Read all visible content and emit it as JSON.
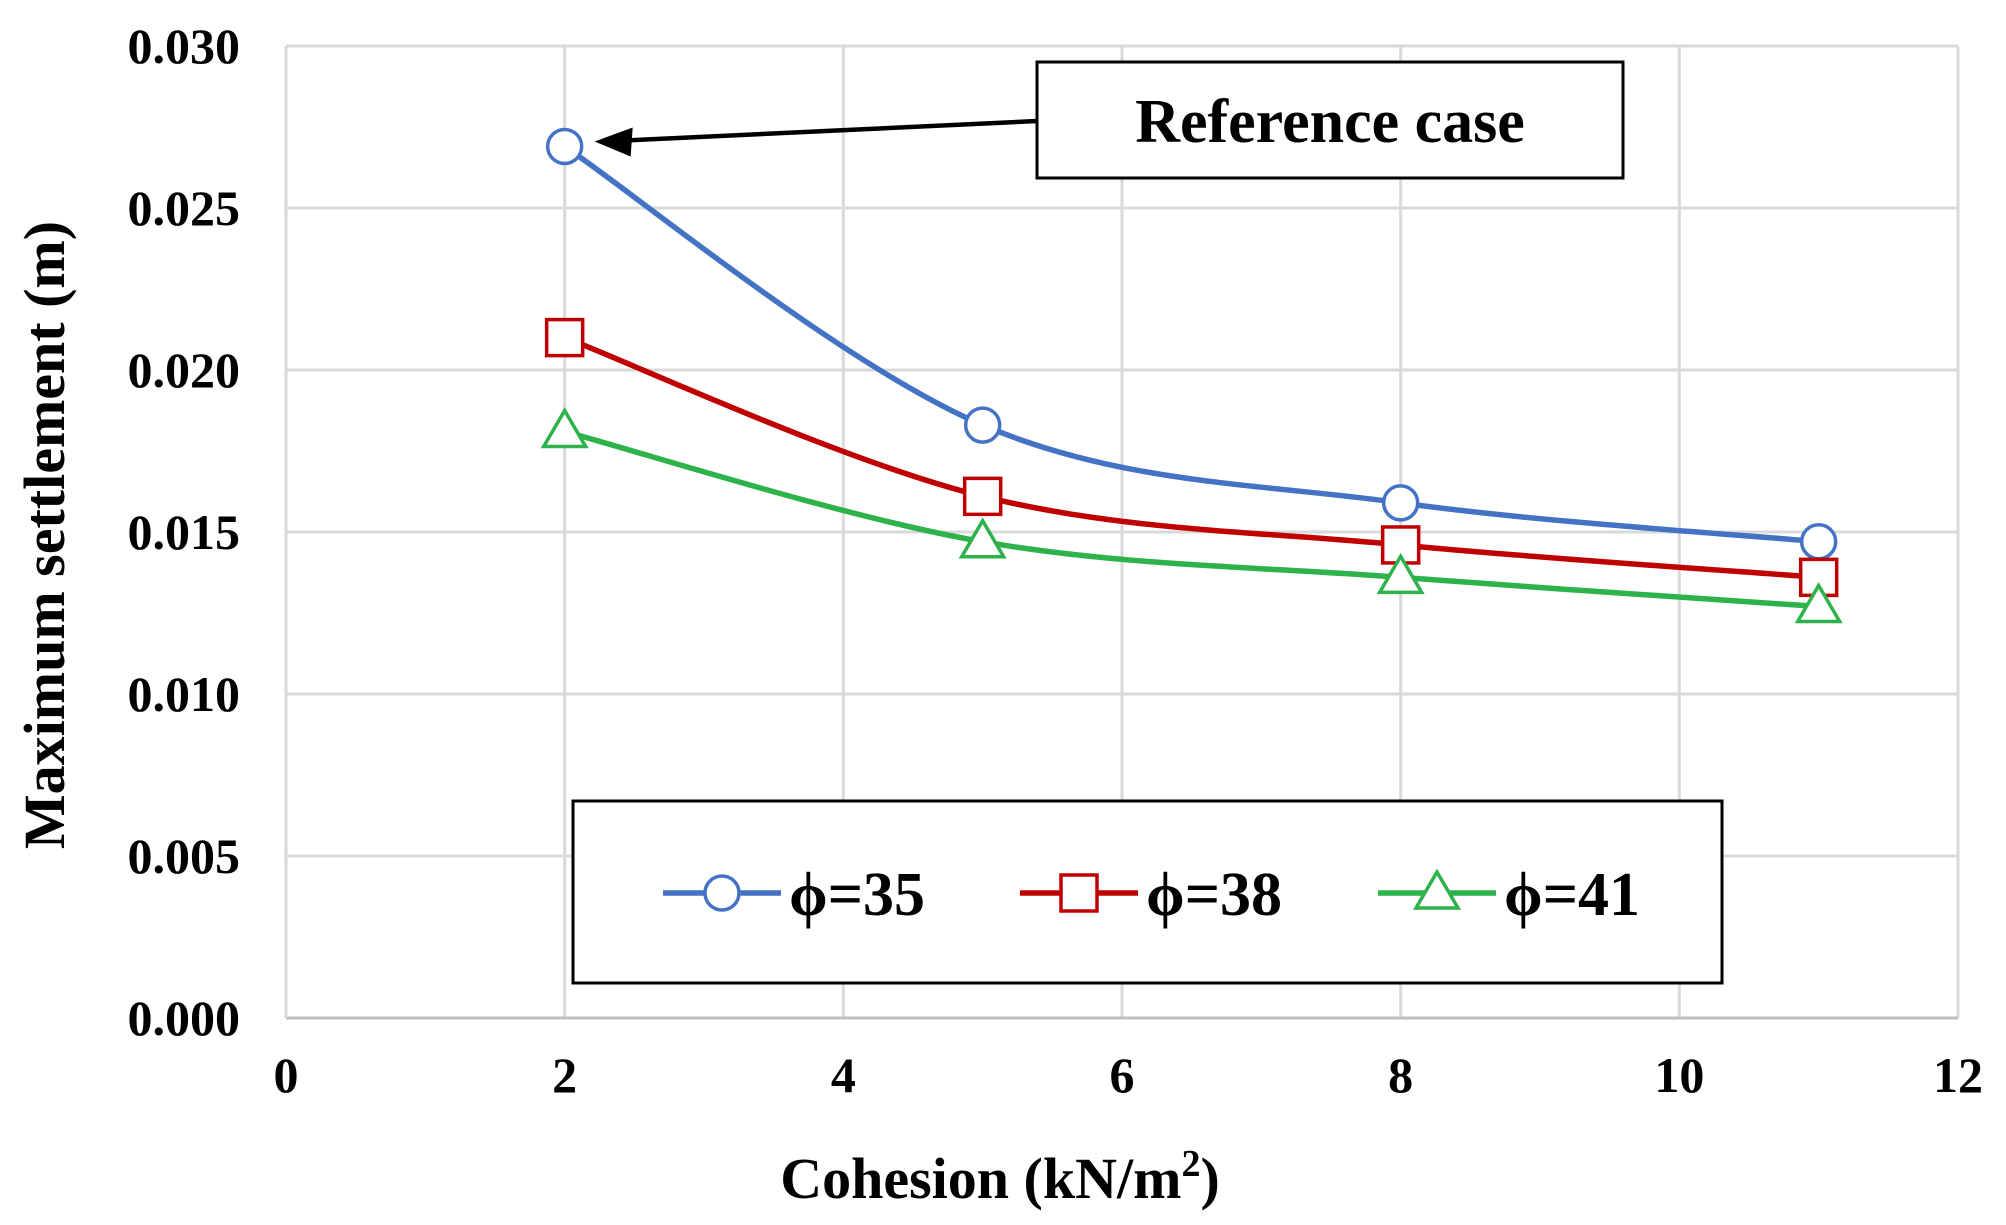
{
  "chart_data": {
    "type": "line",
    "title": "",
    "xlabel": "Cohesion (kN/m",
    "xlabel_sup": "2",
    "xlabel_end": ")",
    "ylabel": "Maximum settlement (m)",
    "xlim": [
      0,
      12
    ],
    "ylim": [
      0,
      0.03
    ],
    "x_ticks": [
      0,
      2,
      4,
      6,
      8,
      10,
      12
    ],
    "x_tick_labels": [
      "0",
      "2",
      "4",
      "6",
      "8",
      "10",
      "12"
    ],
    "y_ticks": [
      0,
      0.005,
      0.01,
      0.015,
      0.02,
      0.025,
      0.03
    ],
    "y_tick_labels": [
      "0.000",
      "0.005",
      "0.010",
      "0.015",
      "0.020",
      "0.025",
      "0.030"
    ],
    "grid": true,
    "smooth": true,
    "legend_position": "bottom-center",
    "x": [
      2,
      5,
      8,
      11
    ],
    "series": [
      {
        "name": "ϕ=35",
        "values": [
          0.0269,
          0.0183,
          0.0159,
          0.0147
        ],
        "color": "#4472C4",
        "marker": "circle"
      },
      {
        "name": "ϕ=38",
        "values": [
          0.021,
          0.0161,
          0.0146,
          0.0136
        ],
        "color": "#C00000",
        "marker": "square"
      },
      {
        "name": "ϕ=41",
        "values": [
          0.0181,
          0.0147,
          0.0136,
          0.0127
        ],
        "color": "#2DB24C",
        "marker": "triangle"
      }
    ],
    "annotations": [
      {
        "text": "Reference case",
        "target_x": 2,
        "target_y": 0.0269
      }
    ]
  }
}
